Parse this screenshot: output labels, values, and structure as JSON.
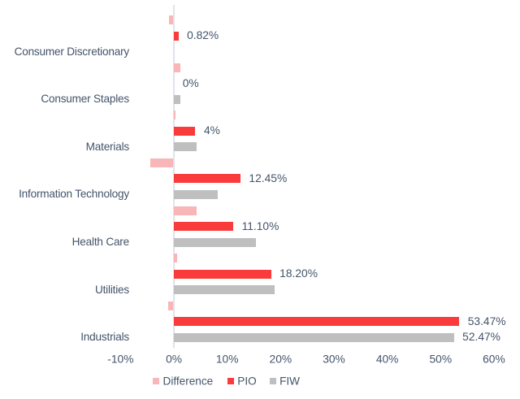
{
  "chart_data": {
    "type": "bar",
    "orientation": "horizontal",
    "title": "",
    "categories": [
      "Consumer Discretionary",
      "Consumer Staples",
      "Materials",
      "Information Technology",
      "Health Care",
      "Utilities",
      "Industrials"
    ],
    "series": [
      {
        "name": "Difference",
        "color": "#f8b6b8",
        "values": [
          -0.82,
          1.15,
          0.35,
          -4.3,
          4.3,
          0.6,
          -1.0
        ],
        "labels": [
          "",
          "",
          "",
          "",
          "",
          "",
          ""
        ]
      },
      {
        "name": "PIO",
        "color": "#fa3b3b",
        "values": [
          0.82,
          0,
          4.0,
          12.45,
          11.1,
          18.2,
          53.47
        ],
        "labels": [
          "0.82%",
          "0%",
          "4%",
          "12.45%",
          "11.10%",
          "18.20%",
          "53.47%"
        ]
      },
      {
        "name": "FIW",
        "color": "#bfbfbf",
        "values": [
          0,
          1.15,
          4.2,
          8.15,
          15.4,
          18.8,
          52.47
        ],
        "labels": [
          "",
          "",
          "",
          "",
          "",
          "",
          "52.47%"
        ]
      }
    ],
    "x_axis": {
      "ticks": [
        "-10%",
        "0%",
        "10%",
        "20%",
        "30%",
        "40%",
        "50%",
        "60%"
      ],
      "tick_values": [
        -10,
        0,
        10,
        20,
        30,
        40,
        50,
        60
      ],
      "range": [
        -10,
        60
      ],
      "unit": "%"
    },
    "legend": {
      "position": "bottom",
      "entries": [
        "Difference",
        "PIO",
        "FIW"
      ]
    },
    "grid": false,
    "background": "#ffffff",
    "text_color": "#44546a",
    "axis_line_color": "#dde4ec"
  }
}
